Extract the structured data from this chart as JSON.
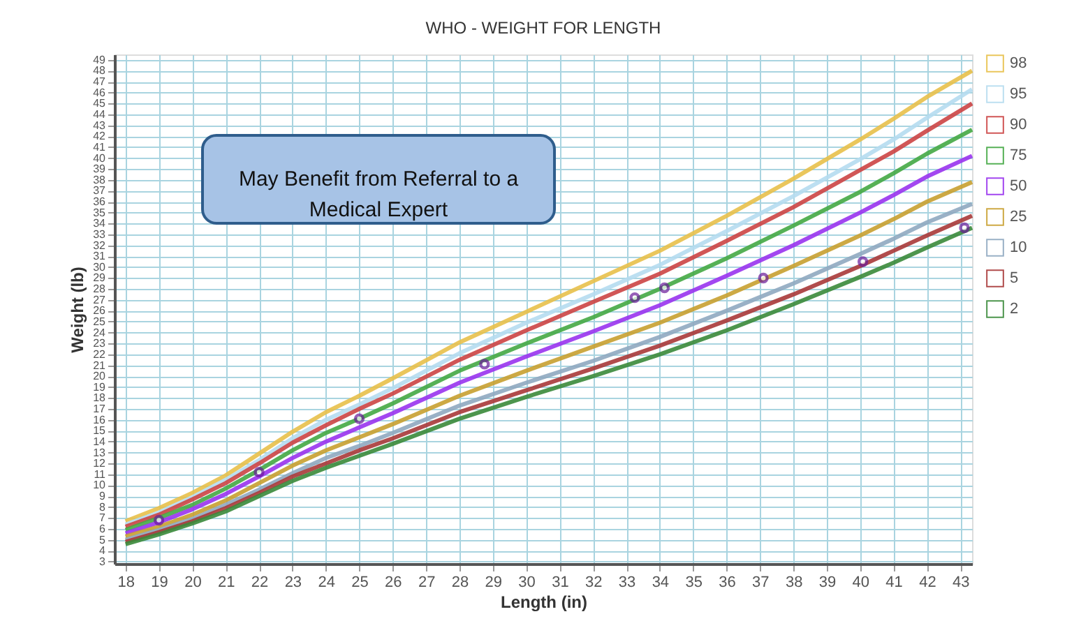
{
  "chart_data": {
    "type": "line",
    "title": "WHO - WEIGHT FOR LENGTH",
    "xlabel": "Length (in)",
    "ylabel": "Weight (lb)",
    "annotations": [
      "May Benefit from Referral to a Medical Expert"
    ],
    "x": [
      18,
      19,
      20,
      21,
      22,
      23,
      24,
      25,
      26,
      28,
      30,
      32,
      34,
      36,
      38,
      40,
      41,
      42,
      43.35
    ],
    "series": [
      {
        "name": "98",
        "color": "#e8c04a",
        "values": [
          6.7,
          7.9,
          9.3,
          10.9,
          12.9,
          14.9,
          16.7,
          18.2,
          19.8,
          23.1,
          25.9,
          28.7,
          31.5,
          34.7,
          38.1,
          41.7,
          43.6,
          45.6,
          48.0
        ]
      },
      {
        "name": "95",
        "color": "#b5dcef",
        "values": [
          6.4,
          7.5,
          8.9,
          10.5,
          12.3,
          14.3,
          16.0,
          17.4,
          18.9,
          22.1,
          24.9,
          27.5,
          30.2,
          33.3,
          36.5,
          39.9,
          41.7,
          43.7,
          46.3
        ]
      },
      {
        "name": "90",
        "color": "#cc4444",
        "values": [
          6.2,
          7.3,
          8.7,
          10.2,
          12.0,
          13.9,
          15.5,
          17.0,
          18.4,
          21.5,
          24.2,
          26.8,
          29.4,
          32.4,
          35.5,
          38.9,
          40.6,
          42.5,
          45.0
        ]
      },
      {
        "name": "75",
        "color": "#44a844",
        "values": [
          5.9,
          7.0,
          8.2,
          9.7,
          11.4,
          13.2,
          14.8,
          16.1,
          17.5,
          20.5,
          23.0,
          25.4,
          28.0,
          30.8,
          33.8,
          36.9,
          38.6,
          40.4,
          42.6
        ]
      },
      {
        "name": "50",
        "color": "#9933ee",
        "values": [
          5.6,
          6.6,
          7.8,
          9.2,
          10.8,
          12.5,
          14.0,
          15.3,
          16.6,
          19.4,
          21.8,
          24.1,
          26.5,
          29.2,
          32.0,
          35.0,
          36.6,
          38.3,
          40.2
        ]
      },
      {
        "name": "25",
        "color": "#c8a030",
        "values": [
          5.3,
          6.2,
          7.3,
          8.6,
          10.2,
          11.8,
          13.2,
          14.4,
          15.6,
          18.2,
          20.5,
          22.7,
          24.9,
          27.4,
          30.1,
          32.9,
          34.4,
          36.0,
          37.8
        ]
      },
      {
        "name": "10",
        "color": "#8fa8c0",
        "values": [
          5.0,
          5.9,
          6.9,
          8.2,
          9.6,
          11.1,
          12.5,
          13.6,
          14.8,
          17.3,
          19.4,
          21.4,
          23.6,
          26.0,
          28.5,
          31.2,
          32.6,
          34.1,
          35.8
        ]
      },
      {
        "name": "5",
        "color": "#a83838",
        "values": [
          4.8,
          5.7,
          6.7,
          7.9,
          9.3,
          10.8,
          12.0,
          13.2,
          14.3,
          16.7,
          18.7,
          20.7,
          22.8,
          25.1,
          27.5,
          30.1,
          31.5,
          32.9,
          34.7
        ]
      },
      {
        "name": "2",
        "color": "#3a8a3a",
        "values": [
          4.6,
          5.5,
          6.5,
          7.6,
          9.0,
          10.4,
          11.6,
          12.7,
          13.8,
          16.1,
          18.1,
          20.0,
          22.0,
          24.2,
          26.6,
          29.1,
          30.4,
          31.8,
          33.6
        ]
      },
      {
        "type": "scatter",
        "color": "#6a1b9a",
        "marker": "circle",
        "x": [
          19,
          22,
          25,
          28.75,
          33.25,
          34.14,
          37.1,
          40.08,
          43.12
        ],
        "values": [
          6.8,
          11.2,
          16.1,
          21.1,
          27.2,
          28.1,
          29.0,
          30.5,
          33.6
        ]
      }
    ],
    "xlim": [
      17.67,
      43.35
    ],
    "ylim": [
      2.8,
      49.5
    ],
    "xticks": [
      18,
      19,
      20,
      21,
      22,
      23,
      24,
      25,
      26,
      27,
      28,
      29,
      30,
      31,
      32,
      33,
      34,
      35,
      36,
      37,
      38,
      39,
      40,
      41,
      42,
      43
    ],
    "yticks": [
      3,
      4,
      5,
      6,
      7,
      8,
      9,
      10,
      11,
      12,
      13,
      14,
      15,
      16,
      17,
      18,
      19,
      20,
      21,
      22,
      23,
      24,
      25,
      26,
      27,
      28,
      29,
      30,
      31,
      32,
      33,
      34,
      35,
      36,
      37,
      38,
      39,
      40,
      41,
      42,
      43,
      44,
      45,
      46,
      47,
      48,
      49
    ],
    "grid": true,
    "legend": "right",
    "line_style": "solid",
    "marker": "none"
  }
}
